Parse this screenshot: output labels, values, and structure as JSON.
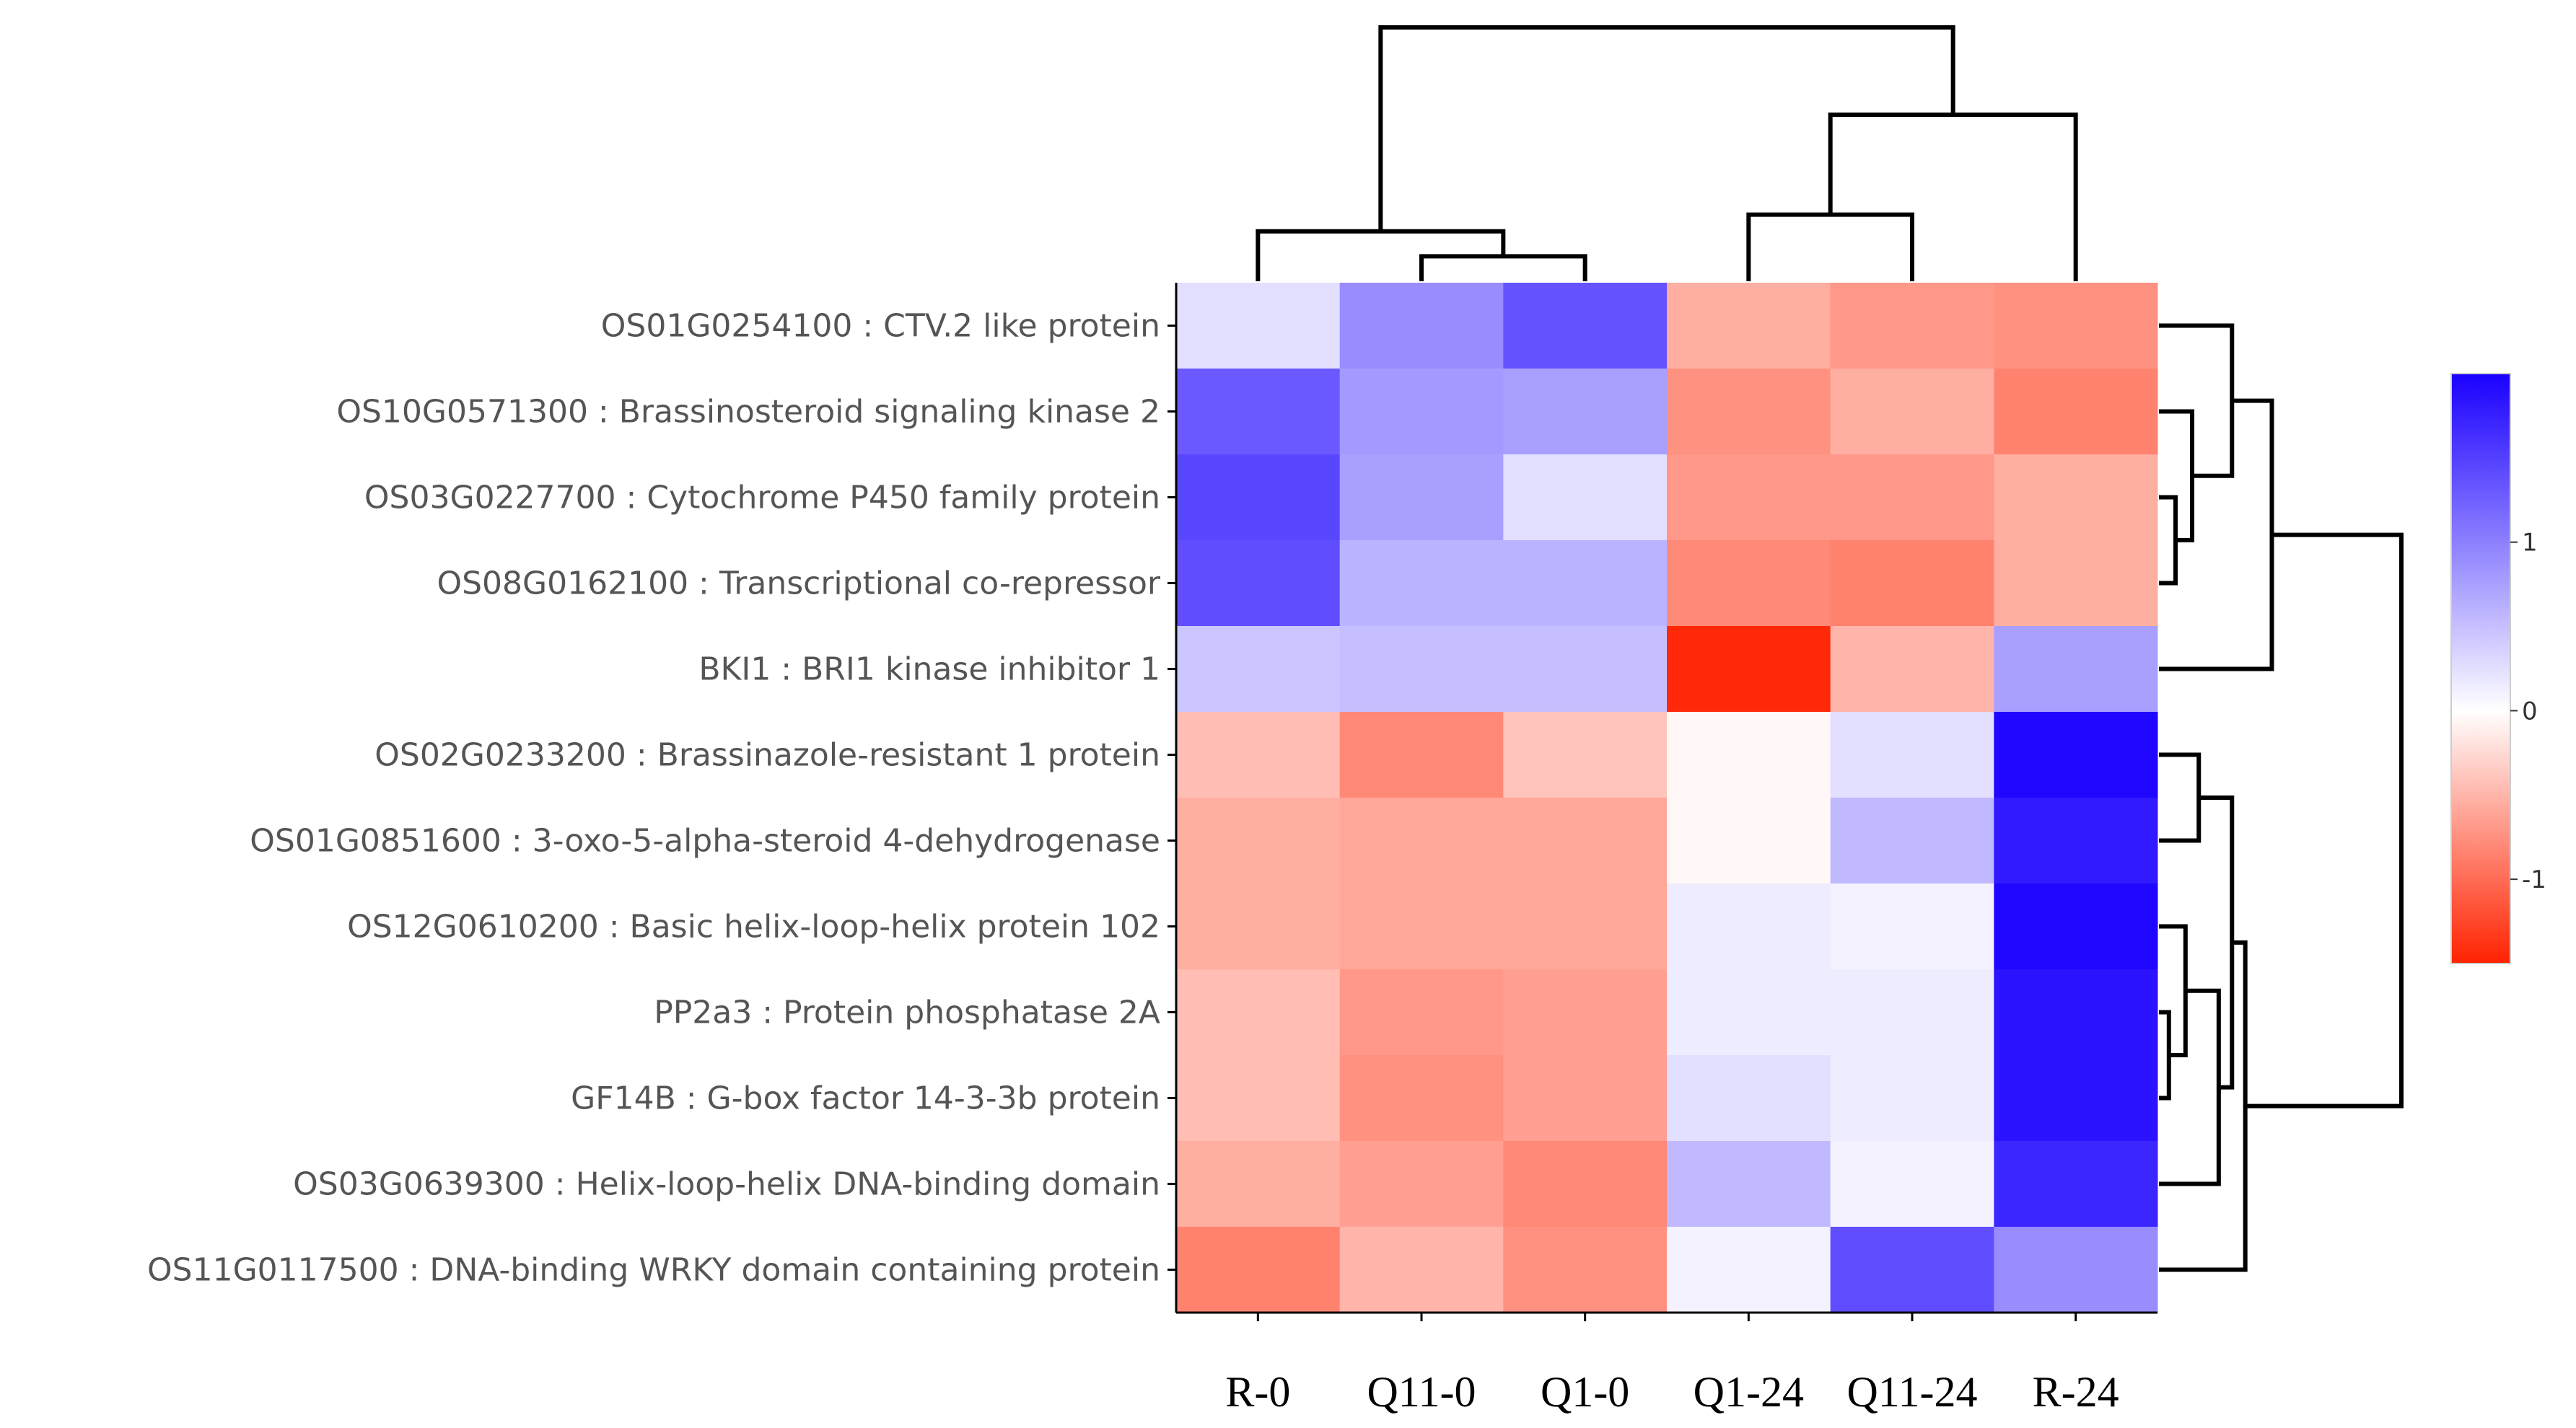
{
  "chart_data": {
    "type": "heatmap",
    "title": "",
    "columns": [
      "R-0",
      "Q11-0",
      "Q1-0",
      "Q1-24",
      "Q11-24",
      "R-24"
    ],
    "rows": [
      "OS01G0254100 : CTV.2 like protein",
      "OS10G0571300 : Brassinosteroid signaling kinase 2",
      "OS03G0227700 : Cytochrome P450 family protein",
      "OS08G0162100 : Transcriptional co-repressor",
      "BKI1 : BRI1 kinase inhibitor 1",
      "OS02G0233200 : Brassinazole-resistant 1 protein",
      "OS01G0851600 : 3-oxo-5-alpha-steroid 4-dehydrogenase",
      "OS12G0610200 : Basic helix-loop-helix protein 102",
      "PP2a3 : Protein phosphatase 2A",
      "GF14B : G-box factor 14-3-3b protein",
      "OS03G0639300 : Helix-loop-helix DNA-binding domain",
      "OS11G0117500 : DNA-binding WRKY domain containing protein"
    ],
    "values": [
      [
        0.25,
        0.9,
        1.35,
        -0.55,
        -0.7,
        -0.75
      ],
      [
        1.3,
        0.8,
        0.75,
        -0.75,
        -0.55,
        -0.85
      ],
      [
        1.45,
        0.75,
        0.25,
        -0.7,
        -0.7,
        -0.55
      ],
      [
        1.4,
        0.6,
        0.6,
        -0.8,
        -0.85,
        -0.55
      ],
      [
        0.45,
        0.5,
        0.5,
        -1.45,
        -0.5,
        0.75
      ],
      [
        -0.45,
        -0.8,
        -0.4,
        -0.05,
        0.25,
        1.95
      ],
      [
        -0.55,
        -0.6,
        -0.6,
        -0.05,
        0.55,
        1.8
      ],
      [
        -0.55,
        -0.6,
        -0.6,
        0.15,
        0.1,
        1.95
      ],
      [
        -0.45,
        -0.7,
        -0.65,
        0.15,
        0.15,
        1.85
      ],
      [
        -0.45,
        -0.75,
        -0.65,
        0.25,
        0.15,
        1.85
      ],
      [
        -0.55,
        -0.65,
        -0.8,
        0.55,
        0.1,
        1.7
      ],
      [
        -0.85,
        -0.5,
        -0.75,
        0.1,
        1.4,
        0.9
      ]
    ],
    "colorbar": {
      "min": -1.5,
      "max": 2.0,
      "ticks": [
        1,
        0,
        -1
      ],
      "tick_labels": [
        "1",
        "0",
        "-1"
      ],
      "low_color": "#ff2200",
      "mid_color": "#ffffff",
      "high_color": "#1a00ff"
    },
    "row_dendrogram": {
      "merges": [
        [
          2,
          3,
          0.5
        ],
        [
          1,
          "m0",
          1.0
        ],
        [
          0,
          "m1",
          2.2
        ],
        [
          "m2",
          4,
          3.4
        ],
        [
          8,
          9,
          0.3
        ],
        [
          7,
          "m4",
          0.8
        ],
        [
          5,
          6,
          1.2
        ],
        [
          "m5",
          10,
          1.8
        ],
        [
          "m6",
          "m7",
          2.2
        ],
        [
          "m8",
          11,
          2.6
        ],
        [
          "m3",
          "m9",
          7.3
        ]
      ],
      "height_max": 7.3
    },
    "col_dendrogram": {
      "merges": [
        [
          1,
          2,
          0.6
        ],
        [
          0,
          "m0",
          1.2
        ],
        [
          3,
          4,
          1.6
        ],
        [
          "m2",
          5,
          4.0
        ],
        [
          "m1",
          "m3",
          6.1
        ]
      ],
      "height_max": 6.1
    }
  }
}
